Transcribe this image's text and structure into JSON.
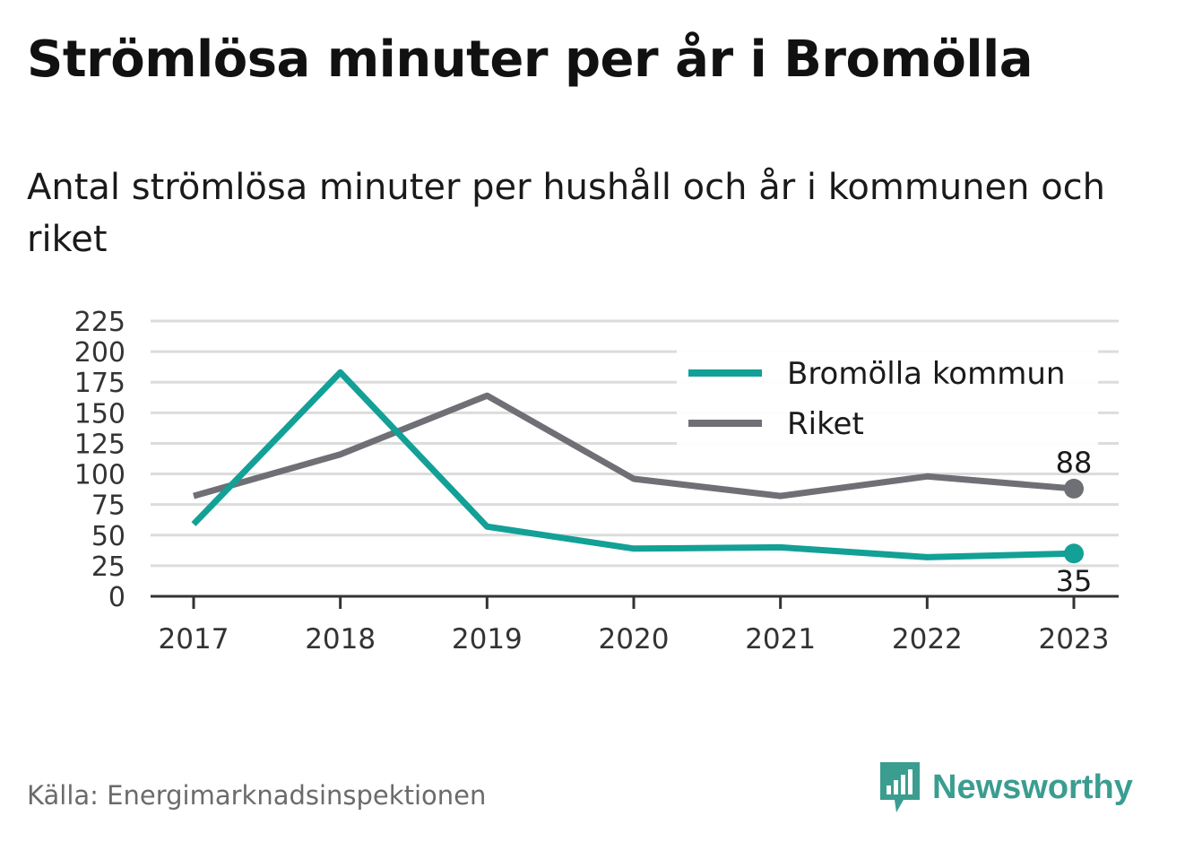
{
  "header": {
    "title": "Strömlösa minuter per år i Bromölla",
    "subtitle": "Antal strömlösa minuter per hushåll och år i kommunen och riket"
  },
  "chart_data": {
    "type": "line",
    "title": "Strömlösa minuter per år i Bromölla",
    "subtitle": "Antal strömlösa minuter per hushåll och år i kommunen och riket",
    "xlabel": "",
    "ylabel": "",
    "categories": [
      "2017",
      "2018",
      "2019",
      "2020",
      "2021",
      "2022",
      "2023"
    ],
    "y_ticks": [
      "0",
      "25",
      "50",
      "75",
      "100",
      "125",
      "150",
      "175",
      "200",
      "225"
    ],
    "ylim": [
      0,
      225
    ],
    "grid": true,
    "legend_position": "top-right",
    "series": [
      {
        "name": "Bromölla kommun",
        "color": "#13a096",
        "values": [
          59,
          183,
          57,
          39,
          40,
          32,
          35
        ],
        "end_label": "35"
      },
      {
        "name": "Riket",
        "color": "#6f6f76",
        "values": [
          82,
          116,
          164,
          96,
          82,
          98,
          88
        ],
        "end_label": "88"
      }
    ]
  },
  "footer": {
    "source": "Källa: Energimarknadsinspektionen",
    "brand": "Newsworthy",
    "brand_color": "#3a9d90"
  }
}
